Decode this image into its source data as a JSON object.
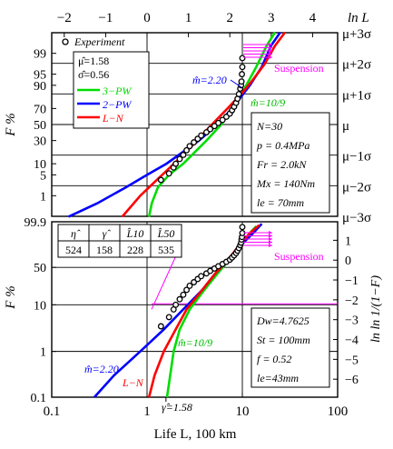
{
  "chart_data": [
    {
      "type": "line",
      "panel": "top",
      "title": "",
      "xlabel_top": "ln L",
      "x_top_ticks": [
        -2,
        -1,
        0,
        1,
        2,
        3,
        4
      ],
      "ylabel": "F %",
      "y_ticks_left": [
        "99",
        "95",
        "90",
        "70",
        "50",
        "30",
        "10",
        "5",
        "1"
      ],
      "y_ticks_right": [
        "μ+3σ",
        "μ+2σ",
        "μ+1σ",
        "μ",
        "μ−1σ",
        "μ−2σ",
        "μ−3σ"
      ],
      "xlim": [
        0.1,
        100
      ],
      "xscale": "log",
      "yscale": "normal-probability",
      "legend": {
        "position": "top-left",
        "experiment_label": "Experiment",
        "mu_label": "μ̂=1.58",
        "sigma_label": "σ̂=0.56",
        "entries": [
          "3−PW",
          "2−PW",
          "L−N"
        ]
      },
      "series": [
        {
          "name": "3−PW",
          "color": "#00dd00",
          "points": [
            [
              1.05,
              0.13
            ],
            [
              1.12,
              0.5
            ],
            [
              1.3,
              2
            ],
            [
              1.7,
              5
            ],
            [
              2.4,
              10
            ],
            [
              4.2,
              30
            ],
            [
              6,
              50
            ],
            [
              8,
              70
            ],
            [
              11,
              90
            ],
            [
              14,
              97
            ],
            [
              18,
              99.5
            ],
            [
              22,
              99.87
            ]
          ]
        },
        {
          "name": "2−PW",
          "color": "#0000ff",
          "points": [
            [
              0.15,
              0.13
            ],
            [
              0.3,
              0.5
            ],
            [
              0.6,
              2
            ],
            [
              1.0,
              5
            ],
            [
              1.6,
              10
            ],
            [
              3.5,
              30
            ],
            [
              5.5,
              50
            ],
            [
              7.8,
              70
            ],
            [
              12,
              90
            ],
            [
              16,
              97
            ],
            [
              20,
              99.5
            ],
            [
              25,
              99.87
            ]
          ]
        },
        {
          "name": "L−N",
          "color": "#ff0000",
          "points": [
            [
              0.55,
              0.13
            ],
            [
              0.85,
              1
            ],
            [
              1.2,
              3
            ],
            [
              1.55,
              6
            ],
            [
              2.0,
              11
            ],
            [
              3.0,
              25
            ],
            [
              4.8,
              50
            ],
            [
              7.0,
              70
            ],
            [
              10,
              85
            ],
            [
              13,
              93
            ],
            [
              17,
              97.5
            ],
            [
              22,
              99.5
            ],
            [
              28,
              99.87
            ]
          ]
        }
      ],
      "experiment_points": [
        [
          1.4,
          3.5
        ],
        [
          1.7,
          5.5
        ],
        [
          1.9,
          8
        ],
        [
          2.0,
          10
        ],
        [
          2.2,
          13
        ],
        [
          2.4,
          16
        ],
        [
          2.6,
          20
        ],
        [
          2.8,
          24
        ],
        [
          3.1,
          28
        ],
        [
          3.4,
          32
        ],
        [
          3.7,
          36
        ],
        [
          4.2,
          40
        ],
        [
          4.6,
          44
        ],
        [
          5.1,
          48
        ],
        [
          5.6,
          52
        ],
        [
          6.2,
          56
        ],
        [
          6.8,
          60
        ],
        [
          7.4,
          64
        ],
        [
          7.8,
          68
        ],
        [
          8.2,
          72
        ],
        [
          8.6,
          76
        ],
        [
          8.9,
          80
        ],
        [
          9.2,
          84
        ],
        [
          9.5,
          88
        ],
        [
          9.7,
          90
        ],
        [
          9.8,
          92
        ],
        [
          9.9,
          95
        ],
        [
          10,
          97
        ],
        [
          10,
          98.5
        ]
      ],
      "suspension_label": "Suspension",
      "suspension_color": "#ff00ff",
      "annotations": {
        "m_2pw": "m̂=2.20",
        "m_3pw": "m̂=10/9"
      },
      "conditions": [
        "N=30",
        "p = 0.4MPa",
        "Fr = 2.0kN",
        "Mx = 140Nm",
        "le = 70mm"
      ]
    },
    {
      "type": "line",
      "panel": "bottom",
      "title": "",
      "xlabel": "Life L, 100 km",
      "x_ticks": [
        "0.1",
        "1",
        "10",
        "100"
      ],
      "xlim": [
        0.1,
        100
      ],
      "xscale": "log",
      "ylabel": "F %",
      "y_ticks_left": [
        "99.9",
        "50",
        "10",
        "1",
        "0.1"
      ],
      "ylabel_right": "ln ln 1/(1−F)",
      "y_ticks_right": [
        1,
        0,
        -1,
        -2,
        -3,
        -4,
        -5,
        -6
      ],
      "table": {
        "headers": [
          "η̂",
          "γ̂",
          "L̂10",
          "L̂50"
        ],
        "values": [
          "524",
          "158",
          "228",
          "535"
        ]
      },
      "series": [
        {
          "name": "3−PW",
          "color": "#00dd00",
          "points": [
            [
              1.62,
              0.1
            ],
            [
              1.75,
              0.3
            ],
            [
              1.9,
              1
            ],
            [
              2.2,
              3
            ],
            [
              2.8,
              8
            ],
            [
              4,
              20
            ],
            [
              5.5,
              40
            ],
            [
              7,
              60
            ],
            [
              8.5,
              80
            ],
            [
              10,
              92
            ],
            [
              12,
              98
            ],
            [
              14,
              99.6
            ]
          ]
        },
        {
          "name": "2−PW",
          "color": "#0000ff",
          "points": [
            [
              0.28,
              0.1
            ],
            [
              0.45,
              0.3
            ],
            [
              0.85,
              1
            ],
            [
              1.5,
              3
            ],
            [
              2.4,
              8
            ],
            [
              3.8,
              20
            ],
            [
              5.2,
              40
            ],
            [
              6.8,
              60
            ],
            [
              8.5,
              80
            ],
            [
              10.5,
              92
            ],
            [
              13,
              98
            ],
            [
              16,
              99.8
            ]
          ]
        },
        {
          "name": "L−N",
          "color": "#ff0000",
          "points": [
            [
              1.05,
              0.1
            ],
            [
              1.2,
              0.3
            ],
            [
              1.5,
              1
            ],
            [
              2.0,
              3
            ],
            [
              2.6,
              8
            ],
            [
              3.8,
              20
            ],
            [
              5.2,
              40
            ],
            [
              6.8,
              60
            ],
            [
              8.4,
              80
            ],
            [
              10,
              92
            ],
            [
              12,
              98
            ],
            [
              15,
              99.7
            ]
          ]
        }
      ],
      "experiment_points": [
        [
          1.4,
          3.5
        ],
        [
          1.7,
          5.5
        ],
        [
          1.9,
          8
        ],
        [
          2.0,
          10
        ],
        [
          2.2,
          13
        ],
        [
          2.4,
          16
        ],
        [
          2.6,
          20
        ],
        [
          2.8,
          24
        ],
        [
          3.1,
          28
        ],
        [
          3.4,
          32
        ],
        [
          3.7,
          36
        ],
        [
          4.2,
          40
        ],
        [
          4.6,
          44
        ],
        [
          5.1,
          48
        ],
        [
          5.6,
          52
        ],
        [
          6.2,
          56
        ],
        [
          6.8,
          60
        ],
        [
          7.4,
          64
        ],
        [
          7.8,
          68
        ],
        [
          8.2,
          72
        ],
        [
          8.6,
          76
        ],
        [
          8.9,
          80
        ],
        [
          9.2,
          84
        ],
        [
          9.5,
          88
        ],
        [
          9.7,
          91
        ],
        [
          9.8,
          94
        ],
        [
          9.9,
          96
        ],
        [
          10,
          98
        ],
        [
          10,
          99.5
        ]
      ],
      "suspension_label": "Suspension",
      "annotations": {
        "m_2pw": "m̂=2.20",
        "m_3pw": "m̂=10/9",
        "gamma": "γ̂=1.58",
        "ln_label": "L−N"
      },
      "conditions": [
        "Dw=4.7625",
        "St = 100mm",
        "f = 0.52",
        "le=43mm"
      ]
    }
  ]
}
